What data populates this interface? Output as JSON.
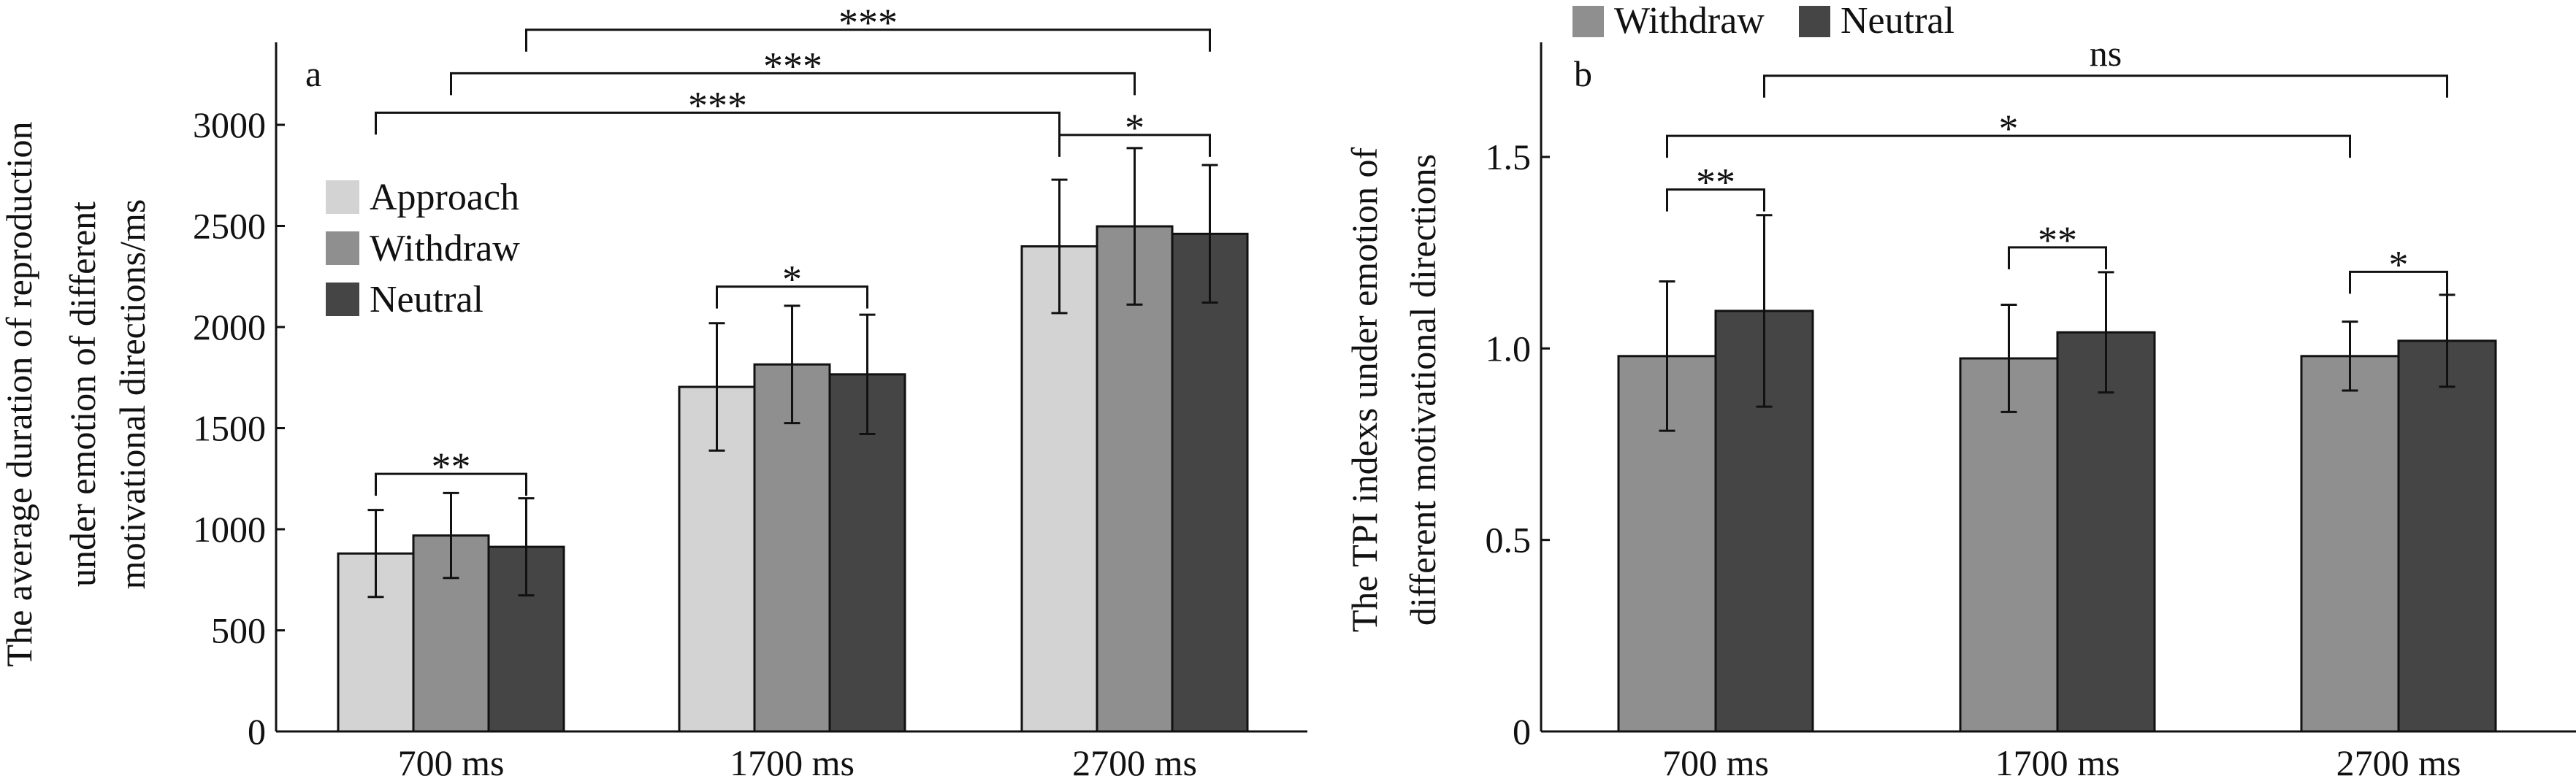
{
  "chart_data": [
    {
      "type": "bar",
      "panel_label": "a",
      "ylabel": [
        "The average duration of reproduction",
        "under emotion of different",
        "motivational directions/ms"
      ],
      "categories": [
        "700 ms",
        "1700 ms",
        "2700 ms"
      ],
      "ylim": [
        0,
        3000
      ],
      "yticks": [
        0,
        500,
        1000,
        1500,
        2000,
        2500,
        3000
      ],
      "legend_placement": "upper-left inside",
      "grid": false,
      "series": [
        {
          "name": "Approach",
          "color": "#d3d3d3",
          "values": [
            880,
            1704,
            2399
          ],
          "errors": [
            215,
            315,
            330
          ]
        },
        {
          "name": "Withdraw",
          "color": "#8f8f8f",
          "values": [
            969,
            1815,
            2498
          ],
          "errors": [
            210,
            290,
            387
          ]
        },
        {
          "name": "Neutral",
          "color": "#454545",
          "values": [
            913,
            1766,
            2461
          ],
          "errors": [
            240,
            295,
            340
          ]
        }
      ],
      "significance": [
        {
          "from": [
            0,
            0
          ],
          "to": [
            0,
            2
          ],
          "label": "**",
          "level": 1274
        },
        {
          "from": [
            1,
            0
          ],
          "to": [
            1,
            2
          ],
          "label": "*",
          "level": 2200
        },
        {
          "from": [
            2,
            0
          ],
          "to": [
            2,
            2
          ],
          "label": "*",
          "level": 2950
        },
        {
          "from": [
            0,
            0
          ],
          "to": [
            2,
            0
          ],
          "label": "***",
          "level": 3060
        },
        {
          "from": [
            0,
            1
          ],
          "to": [
            2,
            1
          ],
          "label": "***",
          "level": 3255
        },
        {
          "from": [
            0,
            2
          ],
          "to": [
            2,
            2
          ],
          "label": "***",
          "level": 3470
        }
      ]
    },
    {
      "type": "bar",
      "panel_label": "b",
      "ylabel": [
        "The TPI indexs under emotion of",
        "different motivational directions"
      ],
      "categories": [
        "700 ms",
        "1700 ms",
        "2700 ms"
      ],
      "ylim": [
        0,
        1.5
      ],
      "yticks": [
        0,
        0.5,
        1.0,
        1.5
      ],
      "ytick_labels": [
        "0",
        "0.5",
        "1.0",
        "1.5"
      ],
      "legend_placement": "top outside",
      "grid": false,
      "series": [
        {
          "name": "Withdraw",
          "color": "#8f8f8f",
          "values": [
            0.98,
            0.974,
            0.98
          ],
          "errors": [
            0.195,
            0.14,
            0.09
          ]
        },
        {
          "name": "Neutral",
          "color": "#454545",
          "values": [
            1.098,
            1.042,
            1.02
          ],
          "errors": [
            0.25,
            0.157,
            0.12
          ]
        }
      ],
      "significance": [
        {
          "from": [
            0,
            0
          ],
          "to": [
            0,
            1
          ],
          "label": "**",
          "level": 1.415
        },
        {
          "from": [
            1,
            0
          ],
          "to": [
            1,
            1
          ],
          "label": "**",
          "level": 1.264
        },
        {
          "from": [
            2,
            0
          ],
          "to": [
            2,
            1
          ],
          "label": "*",
          "level": 1.2
        },
        {
          "from": [
            0,
            0
          ],
          "to": [
            2,
            0
          ],
          "label": "*",
          "level": 1.555
        },
        {
          "from": [
            0,
            1
          ],
          "to": [
            2,
            1
          ],
          "label": "ns",
          "level": 1.712
        }
      ]
    }
  ]
}
